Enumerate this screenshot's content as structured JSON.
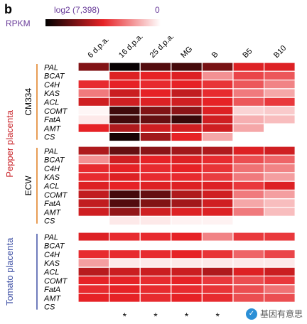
{
  "panel_label": "b",
  "colorbar": {
    "label": "RPKM",
    "min_text": "log2 (7,398)",
    "max_text": "0",
    "dark_color": "#000000",
    "mid_color": "#e62226",
    "light_color": "#ffffff"
  },
  "watermark_text": "基因有意思",
  "colors": {
    "pepper_group_line": "#e07a1a",
    "tomato_group_line": "#3f51a5",
    "pepper_label": "#c9252b",
    "tomato_label": "#3f51a5"
  },
  "chart_data": {
    "type": "heatmap",
    "columns": [
      "6 d.p.a.",
      "16 d.p.a.",
      "25 d.p.a.",
      "MG",
      "B",
      "B5",
      "B10"
    ],
    "genes": [
      "PAL",
      "BCAT",
      "C4H",
      "KAS",
      "ACL",
      "COMT",
      "FatA",
      "AMT",
      "CS"
    ],
    "scale": "0 = white, 0.5 = red, 1 = black",
    "tissue_groups": [
      {
        "name": "Pepper placenta",
        "accessions": [
          "CM334",
          "ECW"
        ]
      },
      {
        "name": "Tomato placenta",
        "accessions": [
          ""
        ]
      }
    ],
    "blocks": [
      {
        "name": "CM334",
        "values": [
          [
            0.72,
            0.98,
            0.82,
            0.85,
            0.74,
            0.52,
            0.52
          ],
          [
            0.0,
            0.52,
            0.5,
            0.52,
            0.25,
            0.42,
            0.38
          ],
          [
            0.48,
            0.5,
            0.48,
            0.5,
            0.46,
            0.38,
            0.28
          ],
          [
            0.3,
            0.56,
            0.5,
            0.58,
            0.48,
            0.3,
            0.2
          ],
          [
            0.55,
            0.55,
            0.52,
            0.55,
            0.5,
            0.38,
            0.45
          ],
          [
            0.02,
            0.86,
            0.72,
            0.7,
            0.52,
            0.1,
            0.12
          ],
          [
            0.05,
            0.86,
            0.78,
            0.88,
            0.55,
            0.18,
            0.15
          ],
          [
            0.5,
            0.62,
            0.55,
            0.55,
            0.55,
            0.2,
            0.0
          ],
          [
            0.0,
            0.95,
            0.65,
            0.5,
            0.2,
            0.0,
            0.0
          ]
        ]
      },
      {
        "name": "ECW",
        "values": [
          [
            0.62,
            0.78,
            0.7,
            0.65,
            0.62,
            0.52,
            0.55
          ],
          [
            0.25,
            0.55,
            0.5,
            0.52,
            0.48,
            0.4,
            0.35
          ],
          [
            0.48,
            0.5,
            0.48,
            0.5,
            0.46,
            0.32,
            0.28
          ],
          [
            0.48,
            0.52,
            0.48,
            0.48,
            0.44,
            0.3,
            0.22
          ],
          [
            0.52,
            0.5,
            0.52,
            0.52,
            0.52,
            0.45,
            0.52
          ],
          [
            0.58,
            0.85,
            0.78,
            0.62,
            0.55,
            0.3,
            0.22
          ],
          [
            0.58,
            0.82,
            0.72,
            0.65,
            0.55,
            0.2,
            0.15
          ],
          [
            0.55,
            0.68,
            0.55,
            0.52,
            0.52,
            0.3,
            0.15
          ],
          [
            0.0,
            0.05,
            0.05,
            0.03,
            0.03,
            0.0,
            0.0
          ]
        ]
      },
      {
        "name": "",
        "values": [
          [
            0.52,
            0.48,
            0.48,
            0.5,
            0.28,
            0.45,
            0.45
          ],
          [
            0.0,
            0.0,
            0.0,
            0.0,
            0.0,
            0.0,
            0.0
          ],
          [
            0.48,
            0.48,
            0.48,
            0.5,
            0.46,
            0.35,
            0.42
          ],
          [
            0.22,
            0.05,
            0.05,
            0.05,
            0.05,
            0.05,
            0.05
          ],
          [
            0.6,
            0.56,
            0.56,
            0.56,
            0.62,
            0.52,
            0.56
          ],
          [
            0.5,
            0.5,
            0.48,
            0.5,
            0.45,
            0.4,
            0.45
          ],
          [
            0.48,
            0.5,
            0.48,
            0.48,
            0.46,
            0.4,
            0.32
          ],
          [
            0.5,
            0.5,
            0.48,
            0.5,
            0.48,
            0.4,
            0.4
          ],
          [
            0.0,
            0.0,
            0.0,
            0.0,
            0.0,
            0.0,
            0.0
          ]
        ]
      }
    ],
    "significance_markers": [
      "",
      "*",
      "*",
      "*",
      "*",
      "",
      ""
    ]
  }
}
